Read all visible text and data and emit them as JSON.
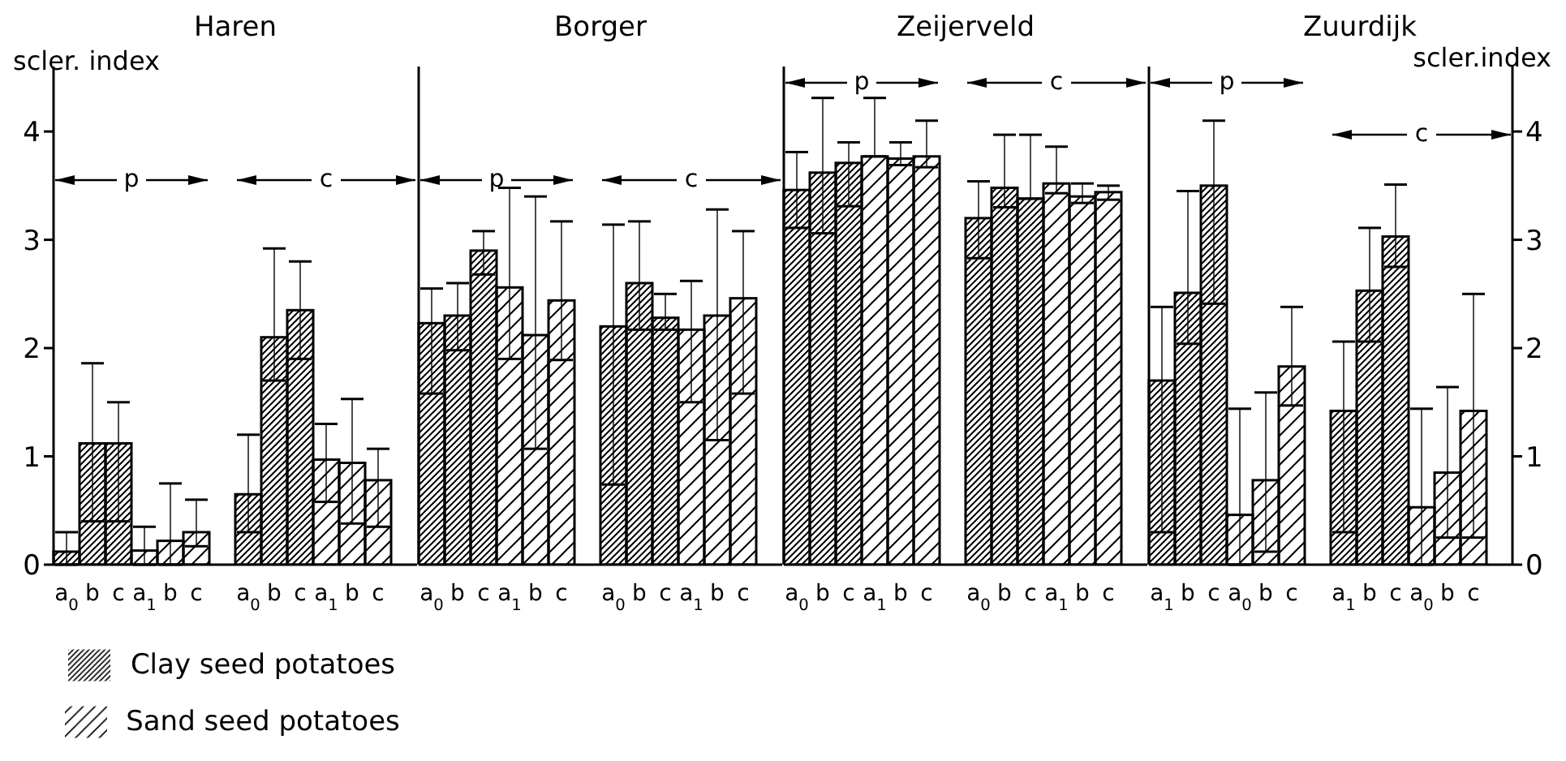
{
  "chart_data": [
    {
      "type": "bar",
      "title": "Haren",
      "ylabel": "scler. index",
      "categories": [
        "a$_{0}$",
        "b",
        "c",
        "a$_{1}$",
        "b",
        "c",
        null,
        "a$_{0}$",
        "b",
        "c",
        "a$_{1}$",
        "b",
        "c"
      ],
      "ylim": [
        0,
        4.6
      ],
      "yticks": [
        0,
        1,
        2,
        3,
        4
      ],
      "annotations": [
        "p",
        "c"
      ],
      "legend": "bottom",
      "series": [
        {
          "name": "Clay seed potatoes",
          "color": "#000000",
          "values": [
            0.12,
            1.12,
            1.12,
            null,
            null,
            null,
            null,
            0.65,
            2.1,
            2.35,
            null,
            null,
            null
          ],
          "errors": [
            [
              0,
              0.3
            ],
            [
              0.4,
              1.86
            ],
            [
              0.4,
              1.5
            ],
            null,
            null,
            null,
            null,
            [
              0.3,
              1.2
            ],
            [
              1.7,
              2.92
            ],
            [
              1.9,
              2.8
            ],
            null,
            null,
            null
          ]
        },
        {
          "name": "Sand seed potatoes",
          "color": "#000000",
          "values": [
            null,
            null,
            null,
            0.13,
            0.22,
            0.3,
            null,
            null,
            null,
            null,
            0.97,
            0.94,
            0.78
          ],
          "errors": [
            null,
            null,
            null,
            [
              0,
              0.35
            ],
            [
              0,
              0.75
            ],
            [
              0.17,
              0.6
            ],
            null,
            null,
            null,
            null,
            [
              0.58,
              1.3
            ],
            [
              0.38,
              1.53
            ],
            [
              0.35,
              1.07
            ]
          ]
        }
      ]
    },
    {
      "type": "bar",
      "title": "Borger",
      "categories": [
        "a$_{0}$",
        "b",
        "c",
        "a$_{1}$",
        "b",
        "c",
        null,
        "a$_{0}$",
        "b",
        "c",
        "a$_{1}$",
        "b",
        "c"
      ],
      "ylim": [
        0,
        4.6
      ],
      "yticks": [
        0,
        1,
        2,
        3,
        4
      ],
      "tick_labels": "x",
      "annotations": [
        "p",
        "c"
      ],
      "series": [
        {
          "color": "#000000",
          "values": [
            2.23,
            2.3,
            2.9,
            null,
            null,
            null,
            null,
            2.2,
            2.6,
            2.28,
            null,
            null,
            null
          ],
          "errors": [
            [
              1.58,
              2.55
            ],
            [
              1.98,
              2.6
            ],
            [
              2.68,
              3.08
            ],
            null,
            null,
            null,
            null,
            [
              0.74,
              3.14
            ],
            [
              2.17,
              3.17
            ],
            [
              2.17,
              2.5
            ],
            null,
            null,
            null
          ]
        },
        {
          "color": "#000000",
          "values": [
            null,
            null,
            null,
            2.56,
            2.12,
            2.44,
            null,
            null,
            null,
            null,
            2.17,
            2.3,
            2.46
          ],
          "errors": [
            null,
            null,
            null,
            [
              1.9,
              3.48
            ],
            [
              1.07,
              3.4
            ],
            [
              1.89,
              3.17
            ],
            null,
            null,
            null,
            null,
            [
              1.5,
              2.62
            ],
            [
              1.15,
              3.28
            ],
            [
              1.58,
              3.08
            ]
          ]
        }
      ]
    },
    {
      "type": "bar",
      "title": "Zeijerveld",
      "categories": [
        "a$_{0}$",
        "b",
        "c",
        "a$_{1}$",
        "b",
        "c",
        null,
        "a$_{0}$",
        "b",
        "c",
        "a$_{1}$",
        "b",
        "c"
      ],
      "ylim": [
        0,
        4.6
      ],
      "yticks": [
        0,
        1,
        2,
        3,
        4
      ],
      "tick_labels": "x",
      "annotations": [
        "p",
        "c"
      ],
      "series": [
        {
          "color": "#000000",
          "values": [
            3.46,
            3.62,
            3.71,
            null,
            null,
            null,
            null,
            3.2,
            3.48,
            3.38,
            null,
            null,
            null
          ],
          "errors": [
            [
              3.11,
              3.81
            ],
            [
              3.06,
              4.31
            ],
            [
              3.31,
              3.9
            ],
            null,
            null,
            null,
            null,
            [
              2.83,
              3.54
            ],
            [
              3.3,
              3.97
            ],
            [
              3.38,
              3.97
            ],
            null,
            null,
            null
          ]
        },
        {
          "color": "#000000",
          "values": [
            null,
            null,
            null,
            3.77,
            3.75,
            3.77,
            null,
            null,
            null,
            null,
            3.52,
            3.4,
            3.44
          ],
          "errors": [
            null,
            null,
            null,
            [
              3.77,
              4.31
            ],
            [
              3.69,
              3.9
            ],
            [
              3.67,
              4.1
            ],
            null,
            null,
            null,
            null,
            [
              3.43,
              3.86
            ],
            [
              3.34,
              3.52
            ],
            [
              3.37,
              3.5
            ]
          ]
        }
      ]
    },
    {
      "type": "bar",
      "title": "Zuurdijk",
      "ylabel": "scler.index",
      "categories": [
        "a$_{1}$",
        "b",
        "c",
        "a$_{0}$",
        "b",
        "c",
        null,
        "a$_{1}$",
        "b",
        "c",
        "a$_{0}$",
        "b",
        "c"
      ],
      "ylim": [
        0,
        4.6
      ],
      "yticks": [
        0,
        1,
        2,
        3,
        4
      ],
      "annotations": [
        "p",
        "c"
      ],
      "series": [
        {
          "color": "#000000",
          "values": [
            1.7,
            2.51,
            3.5,
            null,
            null,
            null,
            null,
            1.42,
            2.53,
            3.03,
            null,
            null,
            null
          ],
          "errors": [
            [
              0.3,
              2.38
            ],
            [
              2.04,
              3.45
            ],
            [
              2.41,
              4.1
            ],
            null,
            null,
            null,
            null,
            [
              0.3,
              2.06
            ],
            [
              2.06,
              3.11
            ],
            [
              2.75,
              3.51
            ],
            null,
            null,
            null
          ]
        },
        {
          "color": "#000000",
          "values": [
            null,
            null,
            null,
            0.46,
            0.78,
            1.83,
            null,
            null,
            null,
            null,
            0.53,
            0.85,
            1.42
          ],
          "errors": [
            null,
            null,
            null,
            [
              0,
              1.44
            ],
            [
              0.12,
              1.59
            ],
            [
              1.47,
              2.38
            ],
            null,
            null,
            null,
            null,
            [
              0,
              1.44
            ],
            [
              0.25,
              1.64
            ],
            [
              0.25,
              2.5
            ]
          ]
        }
      ]
    }
  ]
}
